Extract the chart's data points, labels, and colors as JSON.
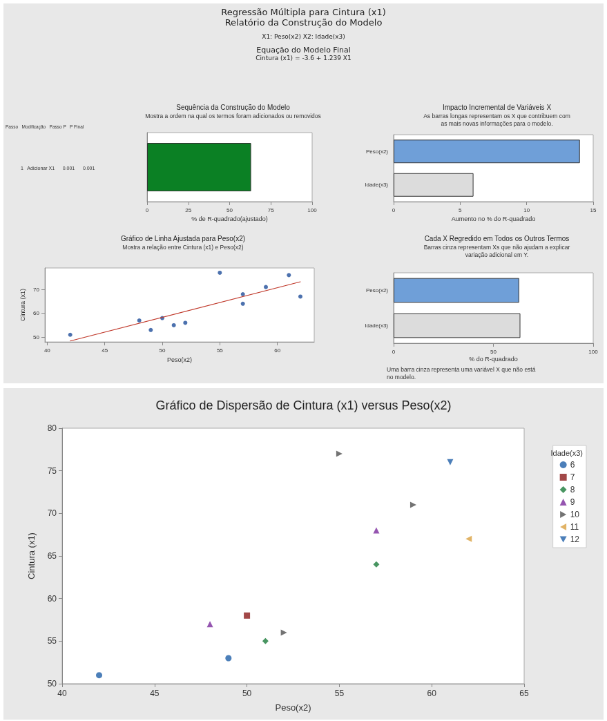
{
  "chart_data": [
    {
      "type": "other",
      "title": "Regressão Múltipla para Cintura (x1)\nRelatório da Construção do Modelo",
      "subtitle": "X1: Peso(x2)   X2: Idade(x3)",
      "annotations": [
        "Equação do Modelo Final",
        "Cintura (x1)  =  -3.6 + 1.239 X1"
      ]
    },
    {
      "type": "bar",
      "orientation": "horizontal",
      "title": "Sequência da Construção do Modelo",
      "subtitle": "Mostra a ordem na qual os termos foram adicionados ou removidos",
      "categories": [
        null
      ],
      "values": [
        63
      ],
      "colors": [
        "#0b8024"
      ],
      "xlim": [
        0,
        100
      ],
      "xticks": [
        0,
        25,
        50,
        75,
        100
      ],
      "xlabel": "% de R-quadrado(ajustado)",
      "annotations": [
        "Passo   Modificação   Passo P   P Final",
        "1   Adicionar X1      0.001      0.001"
      ]
    },
    {
      "type": "bar",
      "orientation": "horizontal",
      "title": "Impacto Incremental de Variáveis X",
      "subtitle": "As barras longas representam os X que contribuem com\nas mais novas informações para o modelo.",
      "categories": [
        "Peso(x2)",
        "Idade(x3)"
      ],
      "values": [
        14.0,
        6.0
      ],
      "colors": [
        "#6f9fd8",
        "#dcdcdc"
      ],
      "xlim": [
        0,
        15
      ],
      "xticks": [
        0,
        5,
        10,
        15
      ],
      "xlabel": "Aumento no % do R-quadrado"
    },
    {
      "type": "scatter",
      "title": "Gráfico de Linha Ajustada para Peso(x2)",
      "subtitle": "Mostra a relação entre Cintura (x1) e Peso(x2)",
      "xlabel": "Peso(x2)",
      "ylabel": "Cintura (x1)",
      "xlim": [
        39.8,
        63.2
      ],
      "xticks": [
        40,
        45,
        50,
        55,
        60
      ],
      "ylim": [
        48,
        79
      ],
      "yticks": [
        50,
        60,
        70
      ],
      "series": [
        {
          "type": "scatter",
          "marker": "circle",
          "color": "#1f4e9a",
          "x": [
            42,
            49,
            50,
            48,
            51,
            52,
            57,
            57,
            55,
            59,
            61,
            62
          ],
          "values": [
            51,
            53,
            58,
            57,
            55,
            56,
            64,
            68,
            77,
            71,
            76,
            67
          ]
        },
        {
          "type": "line",
          "color": "#c0392b",
          "line_style": "solid",
          "x": [
            42,
            62
          ],
          "values": [
            48.4,
            73.2
          ]
        }
      ]
    },
    {
      "type": "bar",
      "orientation": "horizontal",
      "title": "Cada X Regredido em Todos os Outros Termos",
      "subtitle": "Barras cinza representam Xs que não ajudam a explicar\nvariação adicional em Y.",
      "categories": [
        "Peso(x2)",
        "Idade(x3)"
      ],
      "values": [
        62.9,
        63.5
      ],
      "colors": [
        "#6f9fd8",
        "#dcdcdc"
      ],
      "xlim": [
        0,
        100
      ],
      "xticks": [
        0,
        50,
        100
      ],
      "xlabel": "% do R-quadrado",
      "annotations": [
        "Uma barra cinza representa uma variável X que não está\nno modelo."
      ]
    },
    {
      "type": "scatter",
      "title": "Gráfico de Dispersão de Cintura (x1) versus Peso(x2)",
      "xlabel": "Peso(x2)",
      "ylabel": "Cintura (x1)",
      "xlim": [
        40,
        65
      ],
      "xticks": [
        40,
        45,
        50,
        55,
        60,
        65
      ],
      "ylim": [
        50,
        80
      ],
      "yticks": [
        50,
        55,
        60,
        65,
        70,
        75,
        80
      ],
      "legend": "right",
      "legend_title": "Idade(x3)",
      "series": [
        {
          "name": "6",
          "color": "#1f5fa8",
          "marker": "circle",
          "x": [
            42,
            49
          ],
          "values": [
            51,
            53
          ]
        },
        {
          "name": "7",
          "color": "#8b1a1a",
          "marker": "square",
          "x": [
            50
          ],
          "values": [
            58
          ]
        },
        {
          "name": "8",
          "color": "#1a7a3a",
          "marker": "diamond",
          "x": [
            51,
            57
          ],
          "values": [
            55,
            64
          ]
        },
        {
          "name": "9",
          "color": "#7b2a9c",
          "marker": "triangle",
          "x": [
            48,
            57
          ],
          "values": [
            57,
            68
          ]
        },
        {
          "name": "10",
          "color": "#505050",
          "marker": "triangle-right",
          "x": [
            52,
            55,
            59
          ],
          "values": [
            56,
            77,
            71
          ]
        },
        {
          "name": "11",
          "color": "#d9a040",
          "marker": "triangle-left",
          "x": [
            62
          ],
          "values": [
            67
          ]
        },
        {
          "name": "12",
          "color": "#1f5fa8",
          "marker": "triangle-down",
          "x": [
            61
          ],
          "values": [
            76
          ]
        }
      ]
    }
  ]
}
